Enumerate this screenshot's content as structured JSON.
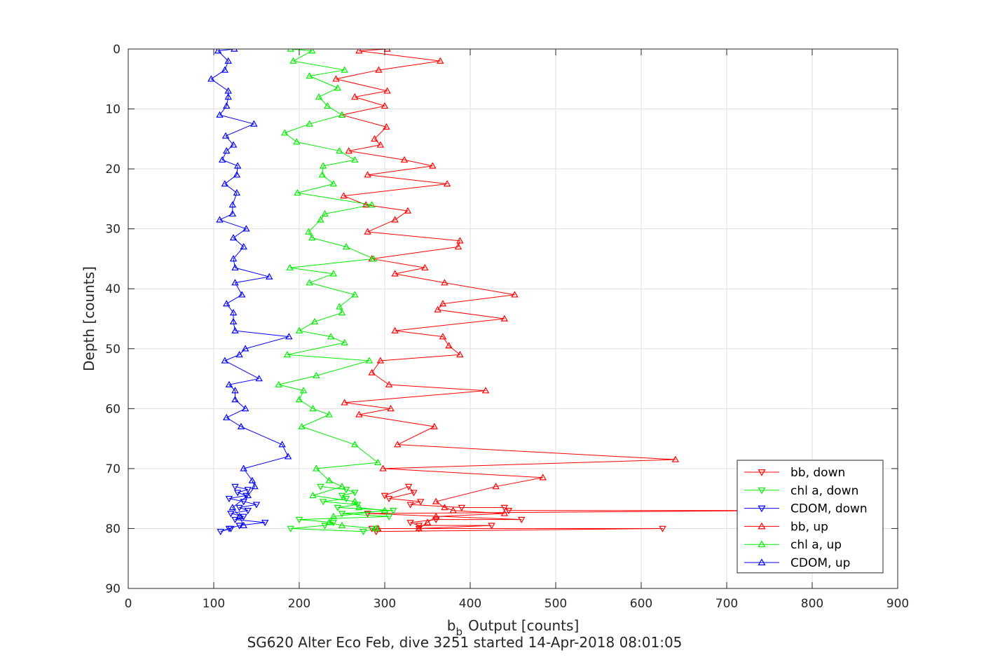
{
  "chart_data": {
    "type": "line",
    "title": "",
    "xlabel": "Output [counts]",
    "xlabel_symbol": "b",
    "xlabel_subscript": "b",
    "ylabel": "Depth [counts]",
    "caption": "SG620 Alter Eco Feb, dive 3251 started 14-Apr-2018 08:01:05",
    "xlim": [
      0,
      900
    ],
    "ylim": [
      0,
      90
    ],
    "y_reversed": true,
    "grid": true,
    "legend_position": "bottom-right",
    "x_ticks": [
      "0",
      "100",
      "200",
      "300",
      "400",
      "500",
      "600",
      "700",
      "800",
      "900"
    ],
    "y_ticks": [
      "0",
      "10",
      "20",
      "30",
      "40",
      "50",
      "60",
      "70",
      "80",
      "90"
    ],
    "series": [
      {
        "name": "bb, down",
        "color": "#ff0000",
        "marker": "triangle-down",
        "points": [
          [
            300,
            74.5
          ],
          [
            328,
            73
          ],
          [
            334,
            74
          ],
          [
            305,
            75
          ],
          [
            342,
            75.5
          ],
          [
            330,
            76
          ],
          [
            390,
            76.5
          ],
          [
            440,
            76.5
          ],
          [
            445,
            77
          ],
          [
            760,
            77
          ],
          [
            280,
            77.5
          ],
          [
            460,
            78.5
          ],
          [
            360,
            78.5
          ],
          [
            330,
            79
          ],
          [
            340,
            79.5
          ],
          [
            425,
            79.5
          ],
          [
            340,
            80
          ],
          [
            625,
            80
          ],
          [
            290,
            80.5
          ],
          [
            285,
            80
          ]
        ]
      },
      {
        "name": "chl a, down",
        "color": "#00ee00",
        "marker": "triangle-down",
        "points": [
          [
            225,
            73
          ],
          [
            255,
            73.5
          ],
          [
            265,
            74
          ],
          [
            250,
            74.5
          ],
          [
            255,
            75
          ],
          [
            228,
            75.5
          ],
          [
            268,
            76
          ],
          [
            245,
            76.5
          ],
          [
            310,
            77
          ],
          [
            250,
            77.5
          ],
          [
            305,
            78
          ],
          [
            200,
            78.5
          ],
          [
            240,
            79
          ],
          [
            230,
            79.5
          ],
          [
            190,
            80
          ],
          [
            275,
            80.5
          ],
          [
            290,
            80
          ]
        ]
      },
      {
        "name": "CDOM, down",
        "color": "#0000ff",
        "marker": "triangle-down",
        "points": [
          [
            125,
            73
          ],
          [
            140,
            73.5
          ],
          [
            128,
            74
          ],
          [
            138,
            74.5
          ],
          [
            118,
            75
          ],
          [
            135,
            75.5
          ],
          [
            150,
            76
          ],
          [
            130,
            76.5
          ],
          [
            140,
            77
          ],
          [
            120,
            77.5
          ],
          [
            135,
            78
          ],
          [
            125,
            78.5
          ],
          [
            160,
            79
          ],
          [
            130,
            79.5
          ],
          [
            118,
            80
          ],
          [
            108,
            80.5
          ],
          [
            120,
            80
          ]
        ]
      },
      {
        "name": "bb, up",
        "color": "#ff0000",
        "marker": "triangle-up",
        "points": [
          [
            292,
            80
          ],
          [
            340,
            80
          ],
          [
            350,
            79
          ],
          [
            360,
            78
          ],
          [
            440,
            77.5
          ],
          [
            380,
            77
          ],
          [
            370,
            76.5
          ],
          [
            360,
            75.5
          ],
          [
            430,
            73
          ],
          [
            485,
            71.5
          ],
          [
            298,
            70
          ],
          [
            640,
            68.5
          ],
          [
            315,
            66
          ],
          [
            358,
            63
          ],
          [
            270,
            61
          ],
          [
            307,
            60
          ],
          [
            253,
            59
          ],
          [
            418,
            57
          ],
          [
            305,
            56
          ],
          [
            285,
            54
          ],
          [
            295,
            52
          ],
          [
            388,
            51
          ],
          [
            375,
            49.5
          ],
          [
            368,
            48
          ],
          [
            312,
            47
          ],
          [
            440,
            45
          ],
          [
            362,
            43.5
          ],
          [
            368,
            42.5
          ],
          [
            452,
            41
          ],
          [
            370,
            39
          ],
          [
            312,
            37.5
          ],
          [
            347,
            36.5
          ],
          [
            285,
            35
          ],
          [
            386,
            33
          ],
          [
            388,
            32
          ],
          [
            280,
            30.5
          ],
          [
            312,
            28.5
          ],
          [
            327,
            27
          ],
          [
            278,
            26
          ],
          [
            252,
            24.5
          ],
          [
            373,
            22.5
          ],
          [
            280,
            21
          ],
          [
            356,
            19.5
          ],
          [
            323,
            18.5
          ],
          [
            258,
            17
          ],
          [
            295,
            16
          ],
          [
            288,
            15
          ],
          [
            302,
            13
          ],
          [
            250,
            11
          ],
          [
            300,
            9.5
          ],
          [
            265,
            8
          ],
          [
            303,
            7
          ],
          [
            243,
            5
          ],
          [
            293,
            3.5
          ],
          [
            365,
            2
          ],
          [
            270,
            0.3
          ],
          [
            303,
            0
          ]
        ]
      },
      {
        "name": "chl a, up",
        "color": "#00ee00",
        "marker": "triangle-up",
        "points": [
          [
            290,
            80
          ],
          [
            250,
            79.5
          ],
          [
            235,
            79
          ],
          [
            240,
            78
          ],
          [
            300,
            77
          ],
          [
            270,
            76.5
          ],
          [
            265,
            75.5
          ],
          [
            216,
            74.5
          ],
          [
            250,
            73
          ],
          [
            235,
            72
          ],
          [
            220,
            70
          ],
          [
            292,
            69
          ],
          [
            265,
            66
          ],
          [
            203,
            63
          ],
          [
            235,
            61
          ],
          [
            216,
            60
          ],
          [
            200,
            58.5
          ],
          [
            205,
            57
          ],
          [
            176,
            56
          ],
          [
            220,
            54.5
          ],
          [
            282,
            52
          ],
          [
            186,
            51
          ],
          [
            253,
            49
          ],
          [
            237,
            48
          ],
          [
            200,
            47
          ],
          [
            218,
            45.5
          ],
          [
            250,
            44
          ],
          [
            247,
            43
          ],
          [
            265,
            41
          ],
          [
            212,
            39
          ],
          [
            240,
            37.5
          ],
          [
            189,
            36.5
          ],
          [
            287,
            35
          ],
          [
            255,
            33
          ],
          [
            215,
            31.5
          ],
          [
            211,
            30.5
          ],
          [
            225,
            28.5
          ],
          [
            230,
            27.5
          ],
          [
            285,
            26
          ],
          [
            198,
            24
          ],
          [
            240,
            22.5
          ],
          [
            227,
            21
          ],
          [
            228,
            19.5
          ],
          [
            265,
            18.5
          ],
          [
            247,
            17
          ],
          [
            197,
            15.5
          ],
          [
            183,
            14
          ],
          [
            212,
            12.5
          ],
          [
            250,
            11
          ],
          [
            233,
            9.5
          ],
          [
            223,
            8
          ],
          [
            245,
            6.5
          ],
          [
            212,
            4.5
          ],
          [
            253,
            3.5
          ],
          [
            193,
            2
          ],
          [
            215,
            0.3
          ],
          [
            190,
            0
          ]
        ]
      },
      {
        "name": "CDOM, up",
        "color": "#0000ff",
        "marker": "triangle-up",
        "points": [
          [
            135,
            79.5
          ],
          [
            130,
            78
          ],
          [
            122,
            76.5
          ],
          [
            140,
            74.5
          ],
          [
            148,
            73
          ],
          [
            145,
            72
          ],
          [
            135,
            70
          ],
          [
            187,
            68
          ],
          [
            180,
            66
          ],
          [
            132,
            63
          ],
          [
            115,
            61.5
          ],
          [
            137,
            60
          ],
          [
            125,
            58.5
          ],
          [
            125,
            57
          ],
          [
            118,
            56
          ],
          [
            153,
            55
          ],
          [
            113,
            52
          ],
          [
            130,
            51
          ],
          [
            137,
            50
          ],
          [
            188,
            48
          ],
          [
            125,
            47
          ],
          [
            123,
            45.5
          ],
          [
            123,
            44
          ],
          [
            115,
            42.5
          ],
          [
            133,
            41
          ],
          [
            125,
            39
          ],
          [
            165,
            38
          ],
          [
            125,
            36.5
          ],
          [
            123,
            35
          ],
          [
            135,
            33
          ],
          [
            123,
            31.5
          ],
          [
            138,
            30
          ],
          [
            107,
            28.5
          ],
          [
            122,
            27.5
          ],
          [
            122,
            26
          ],
          [
            127,
            24
          ],
          [
            113,
            22.5
          ],
          [
            127,
            21
          ],
          [
            128,
            19.5
          ],
          [
            110,
            18.5
          ],
          [
            115,
            17
          ],
          [
            123,
            16
          ],
          [
            114,
            14.5
          ],
          [
            147,
            12.5
          ],
          [
            107,
            11
          ],
          [
            115,
            9.5
          ],
          [
            117,
            8
          ],
          [
            117,
            7
          ],
          [
            97,
            5
          ],
          [
            113,
            3.5
          ],
          [
            117,
            2
          ],
          [
            105,
            0.3
          ],
          [
            124,
            0
          ]
        ]
      }
    ]
  }
}
